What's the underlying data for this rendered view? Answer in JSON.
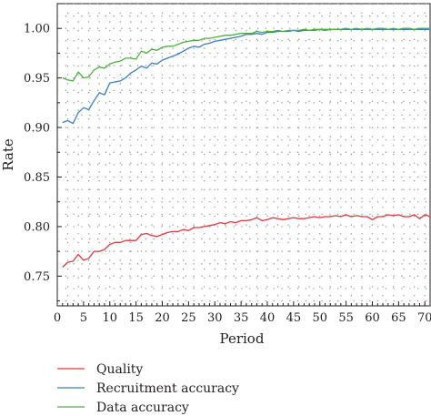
{
  "chart_data": {
    "type": "line",
    "xlabel": "Period",
    "ylabel": "Rate",
    "xlim": [
      0,
      71
    ],
    "ylim": [
      0.72,
      1.025
    ],
    "x_ticks": [
      0,
      5,
      10,
      15,
      20,
      25,
      30,
      35,
      40,
      45,
      50,
      55,
      60,
      65,
      70
    ],
    "y_ticks": [
      0.75,
      0.8,
      0.85,
      0.9,
      0.95,
      1.0
    ],
    "y_tick_labels": [
      "0.75",
      "0.80",
      "0.85",
      "0.90",
      "0.95",
      "1.00"
    ],
    "grid": "dotted",
    "legend_position": "bottom",
    "x": [
      1,
      2,
      3,
      4,
      5,
      6,
      7,
      8,
      9,
      10,
      11,
      12,
      13,
      14,
      15,
      16,
      17,
      18,
      19,
      20,
      21,
      22,
      23,
      24,
      25,
      26,
      27,
      28,
      29,
      30,
      31,
      32,
      33,
      34,
      35,
      36,
      37,
      38,
      39,
      40,
      41,
      42,
      43,
      44,
      45,
      46,
      47,
      48,
      49,
      50,
      51,
      52,
      53,
      54,
      55,
      56,
      57,
      58,
      59,
      60,
      61,
      62,
      63,
      64,
      65,
      66,
      67,
      68,
      69,
      70,
      71
    ],
    "series": [
      {
        "name": "Quality",
        "color": "#e03a3e",
        "values": [
          0.759,
          0.764,
          0.765,
          0.772,
          0.766,
          0.768,
          0.775,
          0.775,
          0.777,
          0.782,
          0.784,
          0.784,
          0.786,
          0.786,
          0.786,
          0.792,
          0.793,
          0.791,
          0.79,
          0.792,
          0.794,
          0.795,
          0.795,
          0.797,
          0.796,
          0.799,
          0.799,
          0.8,
          0.801,
          0.802,
          0.804,
          0.803,
          0.805,
          0.804,
          0.806,
          0.806,
          0.807,
          0.809,
          0.806,
          0.807,
          0.809,
          0.808,
          0.807,
          0.808,
          0.809,
          0.808,
          0.808,
          0.809,
          0.81,
          0.809,
          0.81,
          0.81,
          0.811,
          0.81,
          0.812,
          0.81,
          0.811,
          0.81,
          0.81,
          0.807,
          0.81,
          0.81,
          0.812,
          0.811,
          0.812,
          0.81,
          0.81,
          0.812,
          0.808,
          0.812,
          0.81
        ]
      },
      {
        "name": "Recruitment accuracy",
        "color": "#3a7fc1",
        "values": [
          0.905,
          0.907,
          0.904,
          0.915,
          0.92,
          0.918,
          0.927,
          0.935,
          0.933,
          0.945,
          0.946,
          0.947,
          0.95,
          0.955,
          0.958,
          0.962,
          0.96,
          0.965,
          0.964,
          0.968,
          0.97,
          0.972,
          0.974,
          0.977,
          0.98,
          0.982,
          0.981,
          0.984,
          0.985,
          0.987,
          0.988,
          0.989,
          0.99,
          0.991,
          0.992,
          0.994,
          0.994,
          0.995,
          0.994,
          0.996,
          0.996,
          0.997,
          0.997,
          0.997,
          0.998,
          0.997,
          0.998,
          0.998,
          0.998,
          0.999,
          0.998,
          0.999,
          0.999,
          0.999,
          0.999,
          0.999,
          0.999,
          0.999,
          0.999,
          0.999,
          0.999,
          0.999,
          0.999,
          0.999,
          0.999,
          0.999,
          0.999,
          0.999,
          0.999,
          0.999,
          0.999
        ]
      },
      {
        "name": "Data accuracy",
        "color": "#4caf3f",
        "values": [
          0.95,
          0.948,
          0.947,
          0.956,
          0.95,
          0.951,
          0.958,
          0.961,
          0.96,
          0.964,
          0.966,
          0.967,
          0.97,
          0.97,
          0.969,
          0.977,
          0.975,
          0.979,
          0.978,
          0.981,
          0.982,
          0.982,
          0.984,
          0.986,
          0.987,
          0.988,
          0.988,
          0.99,
          0.99,
          0.991,
          0.992,
          0.993,
          0.993,
          0.994,
          0.995,
          0.995,
          0.995,
          0.997,
          0.996,
          0.997,
          0.997,
          0.998,
          0.997,
          0.998,
          0.998,
          0.998,
          0.999,
          0.998,
          0.999,
          0.999,
          0.999,
          0.999,
          0.999,
          0.999,
          1.0,
          0.999,
          1.0,
          0.999,
          1.0,
          0.999,
          1.0,
          1.0,
          0.999,
          1.0,
          0.999,
          1.0,
          1.0,
          0.999,
          1.0,
          1.0,
          1.0
        ]
      }
    ]
  }
}
